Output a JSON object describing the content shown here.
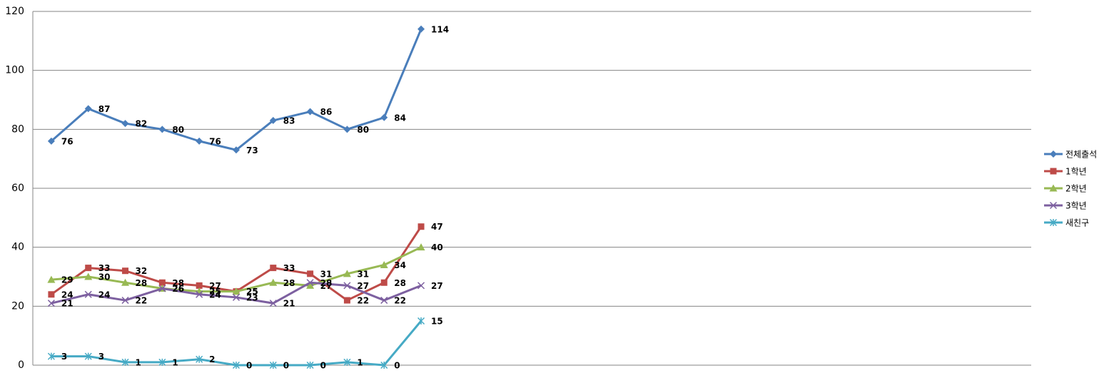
{
  "chart_data": {
    "type": "line",
    "categories": [
      null,
      null,
      null,
      null,
      null,
      null,
      null,
      null,
      null,
      null,
      null,
      null,
      null,
      null,
      null,
      null,
      null,
      null,
      null,
      null,
      null,
      null,
      null,
      null,
      null,
      null,
      null
    ],
    "series": [
      {
        "name": "전체출석",
        "color": "#4a7ebb",
        "marker": "diamond",
        "values": [
          76,
          87,
          82,
          80,
          76,
          73,
          83,
          86,
          80,
          84,
          114,
          null,
          null,
          null,
          null,
          null,
          null,
          null,
          null,
          null,
          null,
          null,
          null,
          null,
          null,
          null,
          null
        ]
      },
      {
        "name": "1학년",
        "color": "#be4b48",
        "marker": "square",
        "values": [
          24,
          33,
          32,
          28,
          27,
          25,
          33,
          31,
          22,
          28,
          47,
          null,
          null,
          null,
          null,
          null,
          null,
          null,
          null,
          null,
          null,
          null,
          null,
          null,
          null,
          null,
          null
        ]
      },
      {
        "name": "2학년",
        "color": "#98b954",
        "marker": "triangle",
        "values": [
          29,
          30,
          28,
          26,
          25,
          25,
          28,
          27,
          31,
          34,
          40,
          null,
          null,
          null,
          null,
          null,
          null,
          null,
          null,
          null,
          null,
          null,
          null,
          null,
          null,
          null,
          null
        ]
      },
      {
        "name": "3학년",
        "color": "#7d60a0",
        "marker": "x",
        "values": [
          21,
          24,
          22,
          26,
          24,
          23,
          21,
          28,
          27,
          22,
          27,
          null,
          null,
          null,
          null,
          null,
          null,
          null,
          null,
          null,
          null,
          null,
          null,
          null,
          null,
          null,
          null
        ]
      },
      {
        "name": "새친구",
        "color": "#46aac5",
        "marker": "star",
        "values": [
          3,
          3,
          1,
          1,
          2,
          0,
          0,
          0,
          1,
          0,
          15,
          null,
          null,
          null,
          null,
          null,
          null,
          null,
          null,
          null,
          null,
          null,
          null,
          null,
          null,
          null,
          null
        ]
      }
    ],
    "ylim": [
      0,
      120
    ],
    "yticks": [
      0,
      20,
      40,
      60,
      80,
      100,
      120
    ],
    "grid": true,
    "legend": "right",
    "data_labels": true
  }
}
